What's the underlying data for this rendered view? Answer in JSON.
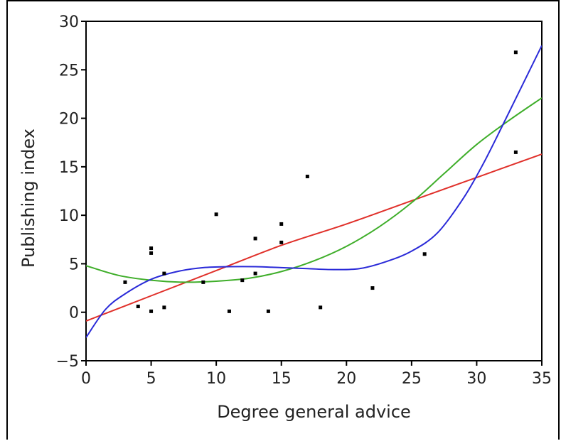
{
  "chart_data": {
    "type": "scatter",
    "title": "",
    "xlabel": "Degree general advice",
    "ylabel": "Publishing index",
    "xlim": [
      0,
      35
    ],
    "ylim": [
      -5,
      30
    ],
    "xticks": [
      0,
      5,
      10,
      15,
      20,
      25,
      30,
      35
    ],
    "yticks": [
      -5,
      0,
      5,
      10,
      15,
      20,
      25,
      30
    ],
    "grid": false,
    "points": [
      [
        3,
        3.1
      ],
      [
        4,
        0.6
      ],
      [
        5,
        6.6
      ],
      [
        5,
        6.1
      ],
      [
        5,
        0.1
      ],
      [
        6,
        4.0
      ],
      [
        6,
        0.5
      ],
      [
        9,
        3.1
      ],
      [
        10,
        10.1
      ],
      [
        11,
        0.1
      ],
      [
        12,
        3.3
      ],
      [
        13,
        7.6
      ],
      [
        13,
        4.0
      ],
      [
        14,
        0.1
      ],
      [
        15,
        9.1
      ],
      [
        15,
        7.2
      ],
      [
        17,
        14.0
      ],
      [
        18,
        0.5
      ],
      [
        22,
        2.5
      ],
      [
        26,
        6.0
      ],
      [
        33,
        26.8
      ],
      [
        33,
        16.5
      ]
    ],
    "fits": [
      {
        "color": "#e0302a",
        "x": [
          0,
          5,
          10,
          15,
          20,
          25,
          30,
          35
        ],
        "y": [
          -0.9,
          1.7,
          4.3,
          6.9,
          9.1,
          11.5,
          13.9,
          16.3
        ]
      },
      {
        "color": "#3fae2a",
        "x": [
          0,
          2.5,
          5,
          7.5,
          10,
          12.5,
          15,
          17.5,
          20,
          22.5,
          25,
          27.5,
          30,
          32.5,
          35
        ],
        "y": [
          4.8,
          3.8,
          3.3,
          3.1,
          3.2,
          3.5,
          4.2,
          5.3,
          6.8,
          8.8,
          11.3,
          14.3,
          17.3,
          19.8,
          22.1
        ]
      },
      {
        "color": "#2a2ad8",
        "x": [
          0,
          1.5,
          3,
          5,
          7,
          9,
          11,
          13,
          15,
          17,
          19,
          21,
          23,
          25,
          27,
          29,
          30.5,
          32,
          33.5,
          35
        ],
        "y": [
          -2.6,
          0.3,
          1.9,
          3.4,
          4.2,
          4.6,
          4.7,
          4.7,
          4.6,
          4.5,
          4.4,
          4.5,
          5.2,
          6.3,
          8.2,
          11.8,
          15.3,
          19.3,
          23.4,
          27.5
        ]
      }
    ]
  }
}
